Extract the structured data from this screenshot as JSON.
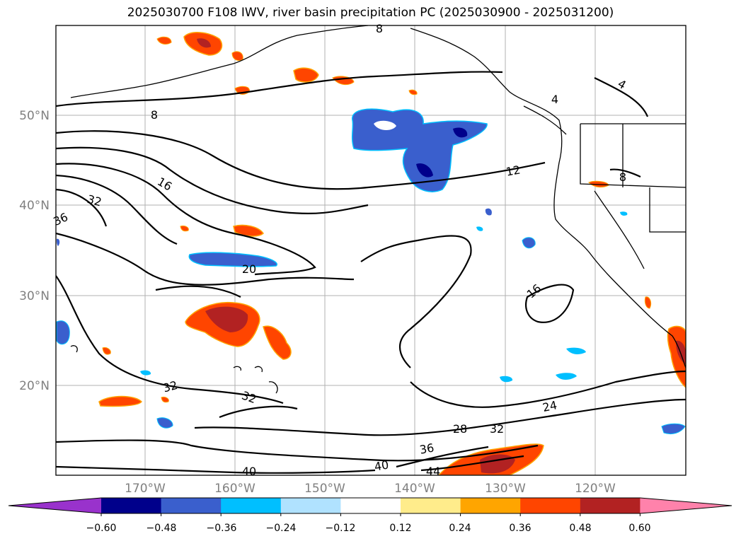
{
  "title": "2025030700 F108 IWV, river basin precipitation PC (2025030900 - 2025031200)",
  "map": {
    "lat_ticks": [
      "50°N",
      "40°N",
      "30°N",
      "20°N"
    ],
    "lon_ticks": [
      "170°W",
      "160°W",
      "150°W",
      "140°W",
      "130°W",
      "120°W"
    ],
    "contour_labels": [
      "8",
      "16",
      "32",
      "36",
      "20",
      "12",
      "16",
      "32",
      "32",
      "24",
      "28",
      "32",
      "36",
      "40",
      "40",
      "44",
      "4",
      "4",
      "8",
      "8"
    ]
  },
  "colorbar": {
    "tick_labels": [
      "−0.60",
      "−0.48",
      "−0.36",
      "−0.24",
      "−0.12",
      "0.12",
      "0.24",
      "0.36",
      "0.48",
      "0.60"
    ],
    "colors": [
      "#9932cc",
      "#00008b",
      "#3a5fcd",
      "#00bfff",
      "#b0e2ff",
      "#ffffff",
      "#ffec8b",
      "#ffa500",
      "#ff4500",
      "#b22222",
      "#ff82ab"
    ]
  }
}
